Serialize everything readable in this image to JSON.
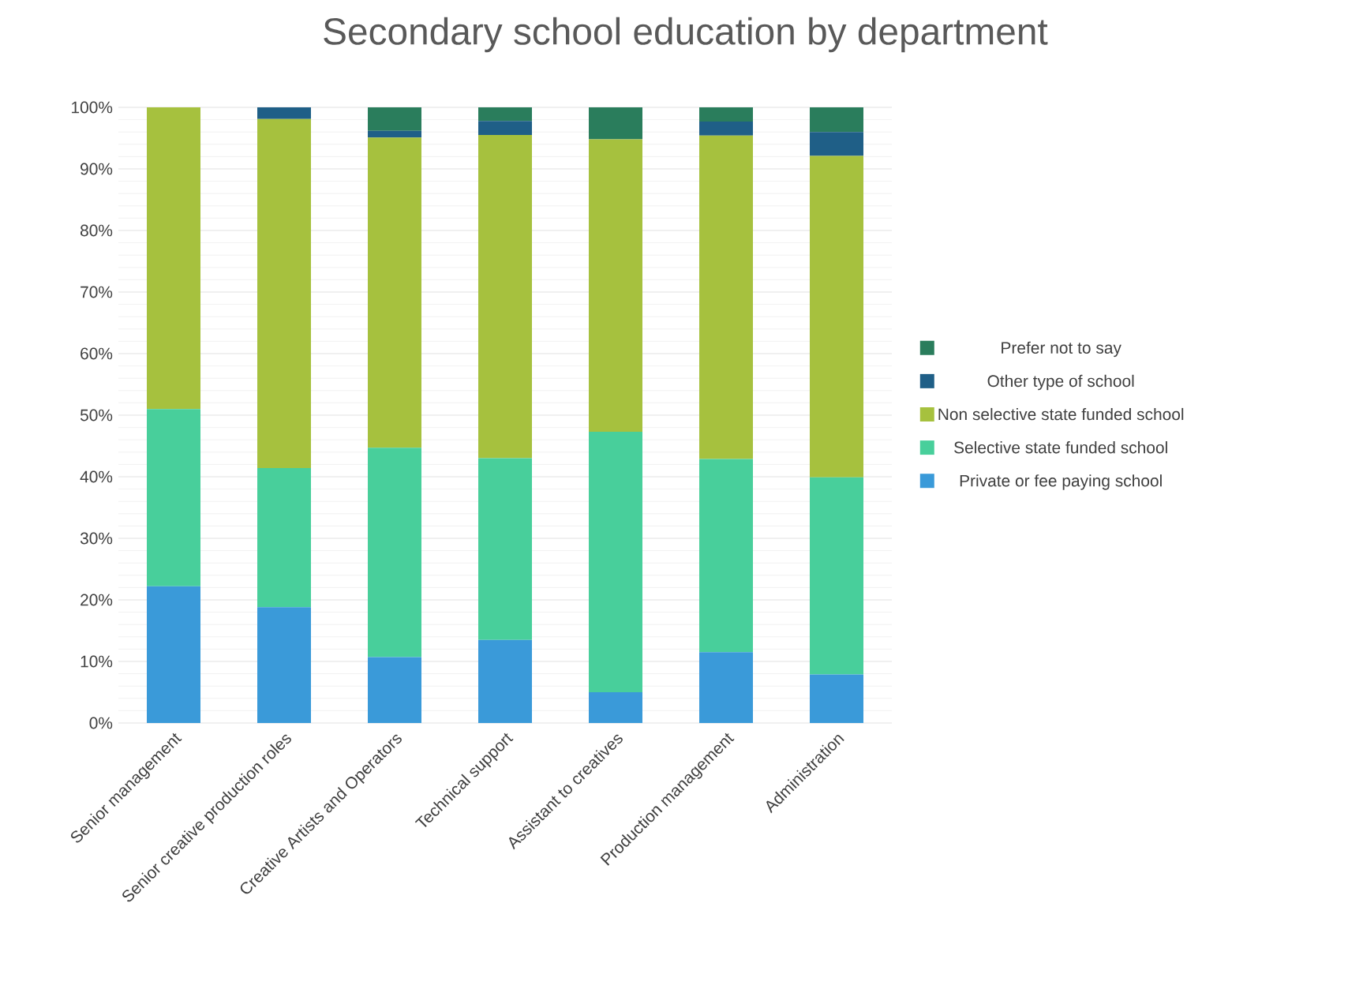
{
  "chart_data": {
    "type": "bar",
    "stacked": true,
    "title": "Secondary school education by department",
    "categories": [
      "Senior management",
      "Senior creative production roles",
      "Creative Artists and Operators",
      "Technical support",
      "Assistant to creatives",
      "Production management",
      "Administration"
    ],
    "series": [
      {
        "name": "Private or fee paying school",
        "color": "#3a9ad9",
        "values": [
          22.2,
          18.8,
          10.7,
          13.5,
          5.0,
          11.5,
          7.9
        ]
      },
      {
        "name": "Selective state funded school",
        "color": "#48cf9b",
        "values": [
          28.8,
          22.6,
          34.0,
          29.5,
          42.3,
          31.4,
          32.0
        ]
      },
      {
        "name": "Non selective state funded school",
        "color": "#a6c13e",
        "values": [
          49.0,
          56.7,
          50.4,
          52.5,
          47.5,
          52.5,
          52.2
        ]
      },
      {
        "name": "Other type of school",
        "color": "#1f5f87",
        "values": [
          0,
          1.9,
          1.1,
          2.3,
          0,
          2.3,
          3.9
        ]
      },
      {
        "name": "Prefer not to say",
        "color": "#2a7d5c",
        "values": [
          0,
          0,
          3.8,
          2.2,
          5.2,
          2.3,
          4.0
        ]
      }
    ],
    "ylim": [
      0,
      100
    ],
    "yticks": [
      {
        "value": 0,
        "label": "0%"
      },
      {
        "value": 10,
        "label": "10%"
      },
      {
        "value": 20,
        "label": "20%"
      },
      {
        "value": 30,
        "label": "30%"
      },
      {
        "value": 40,
        "label": "40%"
      },
      {
        "value": 50,
        "label": "50%"
      },
      {
        "value": 60,
        "label": "60%"
      },
      {
        "value": 70,
        "label": "70%"
      },
      {
        "value": 80,
        "label": "80%"
      },
      {
        "value": 90,
        "label": "90%"
      },
      {
        "value": 100,
        "label": "100%"
      }
    ],
    "grid": "y",
    "legend": "right"
  }
}
